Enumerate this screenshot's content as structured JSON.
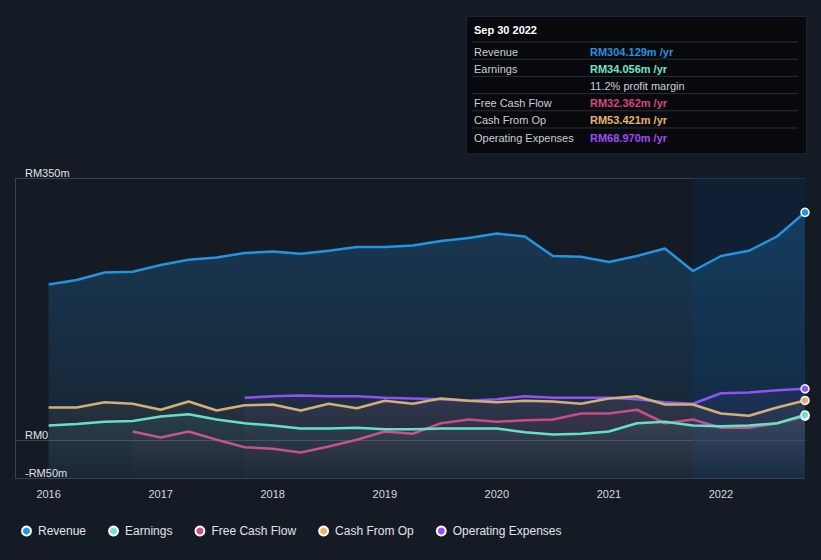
{
  "chart_data": {
    "type": "line",
    "x": [
      2016,
      2016.25,
      2016.5,
      2016.75,
      2017,
      2017.25,
      2017.5,
      2017.75,
      2018,
      2018.25,
      2018.5,
      2018.75,
      2019,
      2019.25,
      2019.5,
      2019.75,
      2020,
      2020.25,
      2020.5,
      2020.75,
      2021,
      2021.25,
      2021.5,
      2021.75,
      2022,
      2022.25,
      2022.5,
      2022.75
    ],
    "series": [
      {
        "name": "Revenue",
        "color": "#2394df",
        "values": [
          208,
          214,
          224,
          225,
          234,
          241,
          244,
          250,
          252,
          249,
          253,
          258,
          258,
          260,
          266,
          270,
          276,
          272,
          246,
          245,
          238,
          246,
          256,
          226,
          246,
          253,
          272,
          304.129
        ]
      },
      {
        "name": "Earnings",
        "color": "#6ee7c5",
        "values": [
          20,
          22,
          25,
          26,
          32,
          35,
          28,
          23,
          20,
          16,
          16,
          17,
          15,
          15,
          16,
          16,
          16,
          11,
          8,
          9,
          12,
          23,
          25,
          20,
          19,
          20,
          23,
          34.056
        ]
      },
      {
        "name": "Free Cash Flow",
        "color": "#d8467a",
        "values": [
          null,
          null,
          null,
          12,
          4,
          12,
          1,
          -9,
          -11,
          -16,
          -8,
          1,
          12,
          9,
          23,
          28,
          25,
          27,
          28,
          36,
          36,
          41,
          23,
          28,
          17,
          17,
          23,
          32.362
        ]
      },
      {
        "name": "Cash From Op",
        "color": "#e9b36a",
        "values": [
          44,
          44,
          51,
          49,
          41,
          52,
          40,
          47,
          48,
          40,
          49,
          43,
          53,
          49,
          56,
          53,
          51,
          53,
          52,
          49,
          56,
          59,
          48,
          48,
          36,
          33,
          44,
          53.421
        ]
      },
      {
        "name": "Operating Expenses",
        "color": "#9d4bf5",
        "values": [
          null,
          null,
          null,
          null,
          null,
          null,
          null,
          57,
          59,
          60,
          59,
          59,
          57,
          56,
          55,
          53,
          55,
          59,
          57,
          57,
          57,
          55,
          51,
          49,
          63,
          64,
          67,
          68.97
        ]
      }
    ],
    "xlim": [
      2015.7,
      2022.75
    ],
    "xticks": [
      2016,
      2017,
      2018,
      2019,
      2020,
      2021,
      2022
    ],
    "ylim": [
      -50,
      350
    ],
    "yticks": [
      {
        "value": -50,
        "label": "-RM50m"
      },
      {
        "value": 0,
        "label": "RM0"
      },
      {
        "value": 350,
        "label": "RM350m"
      }
    ],
    "grid": true,
    "legend": "bottom",
    "marker": "circle",
    "shaded_range": [
      2021.75,
      2022.75
    ],
    "annotation": {
      "title": "Sep 30 2022",
      "rows": [
        {
          "label": "Revenue",
          "value": "RM304.129m /yr"
        },
        {
          "label": "Earnings",
          "value": "RM34.056m /yr"
        },
        {
          "value": "11.2% profit margin"
        },
        {
          "label": "Free Cash Flow",
          "value": "RM32.362m /yr"
        },
        {
          "label": "Cash From Op",
          "value": "RM53.421m /yr"
        },
        {
          "label": "Operating Expenses",
          "value": "RM68.970m /yr"
        }
      ]
    }
  }
}
